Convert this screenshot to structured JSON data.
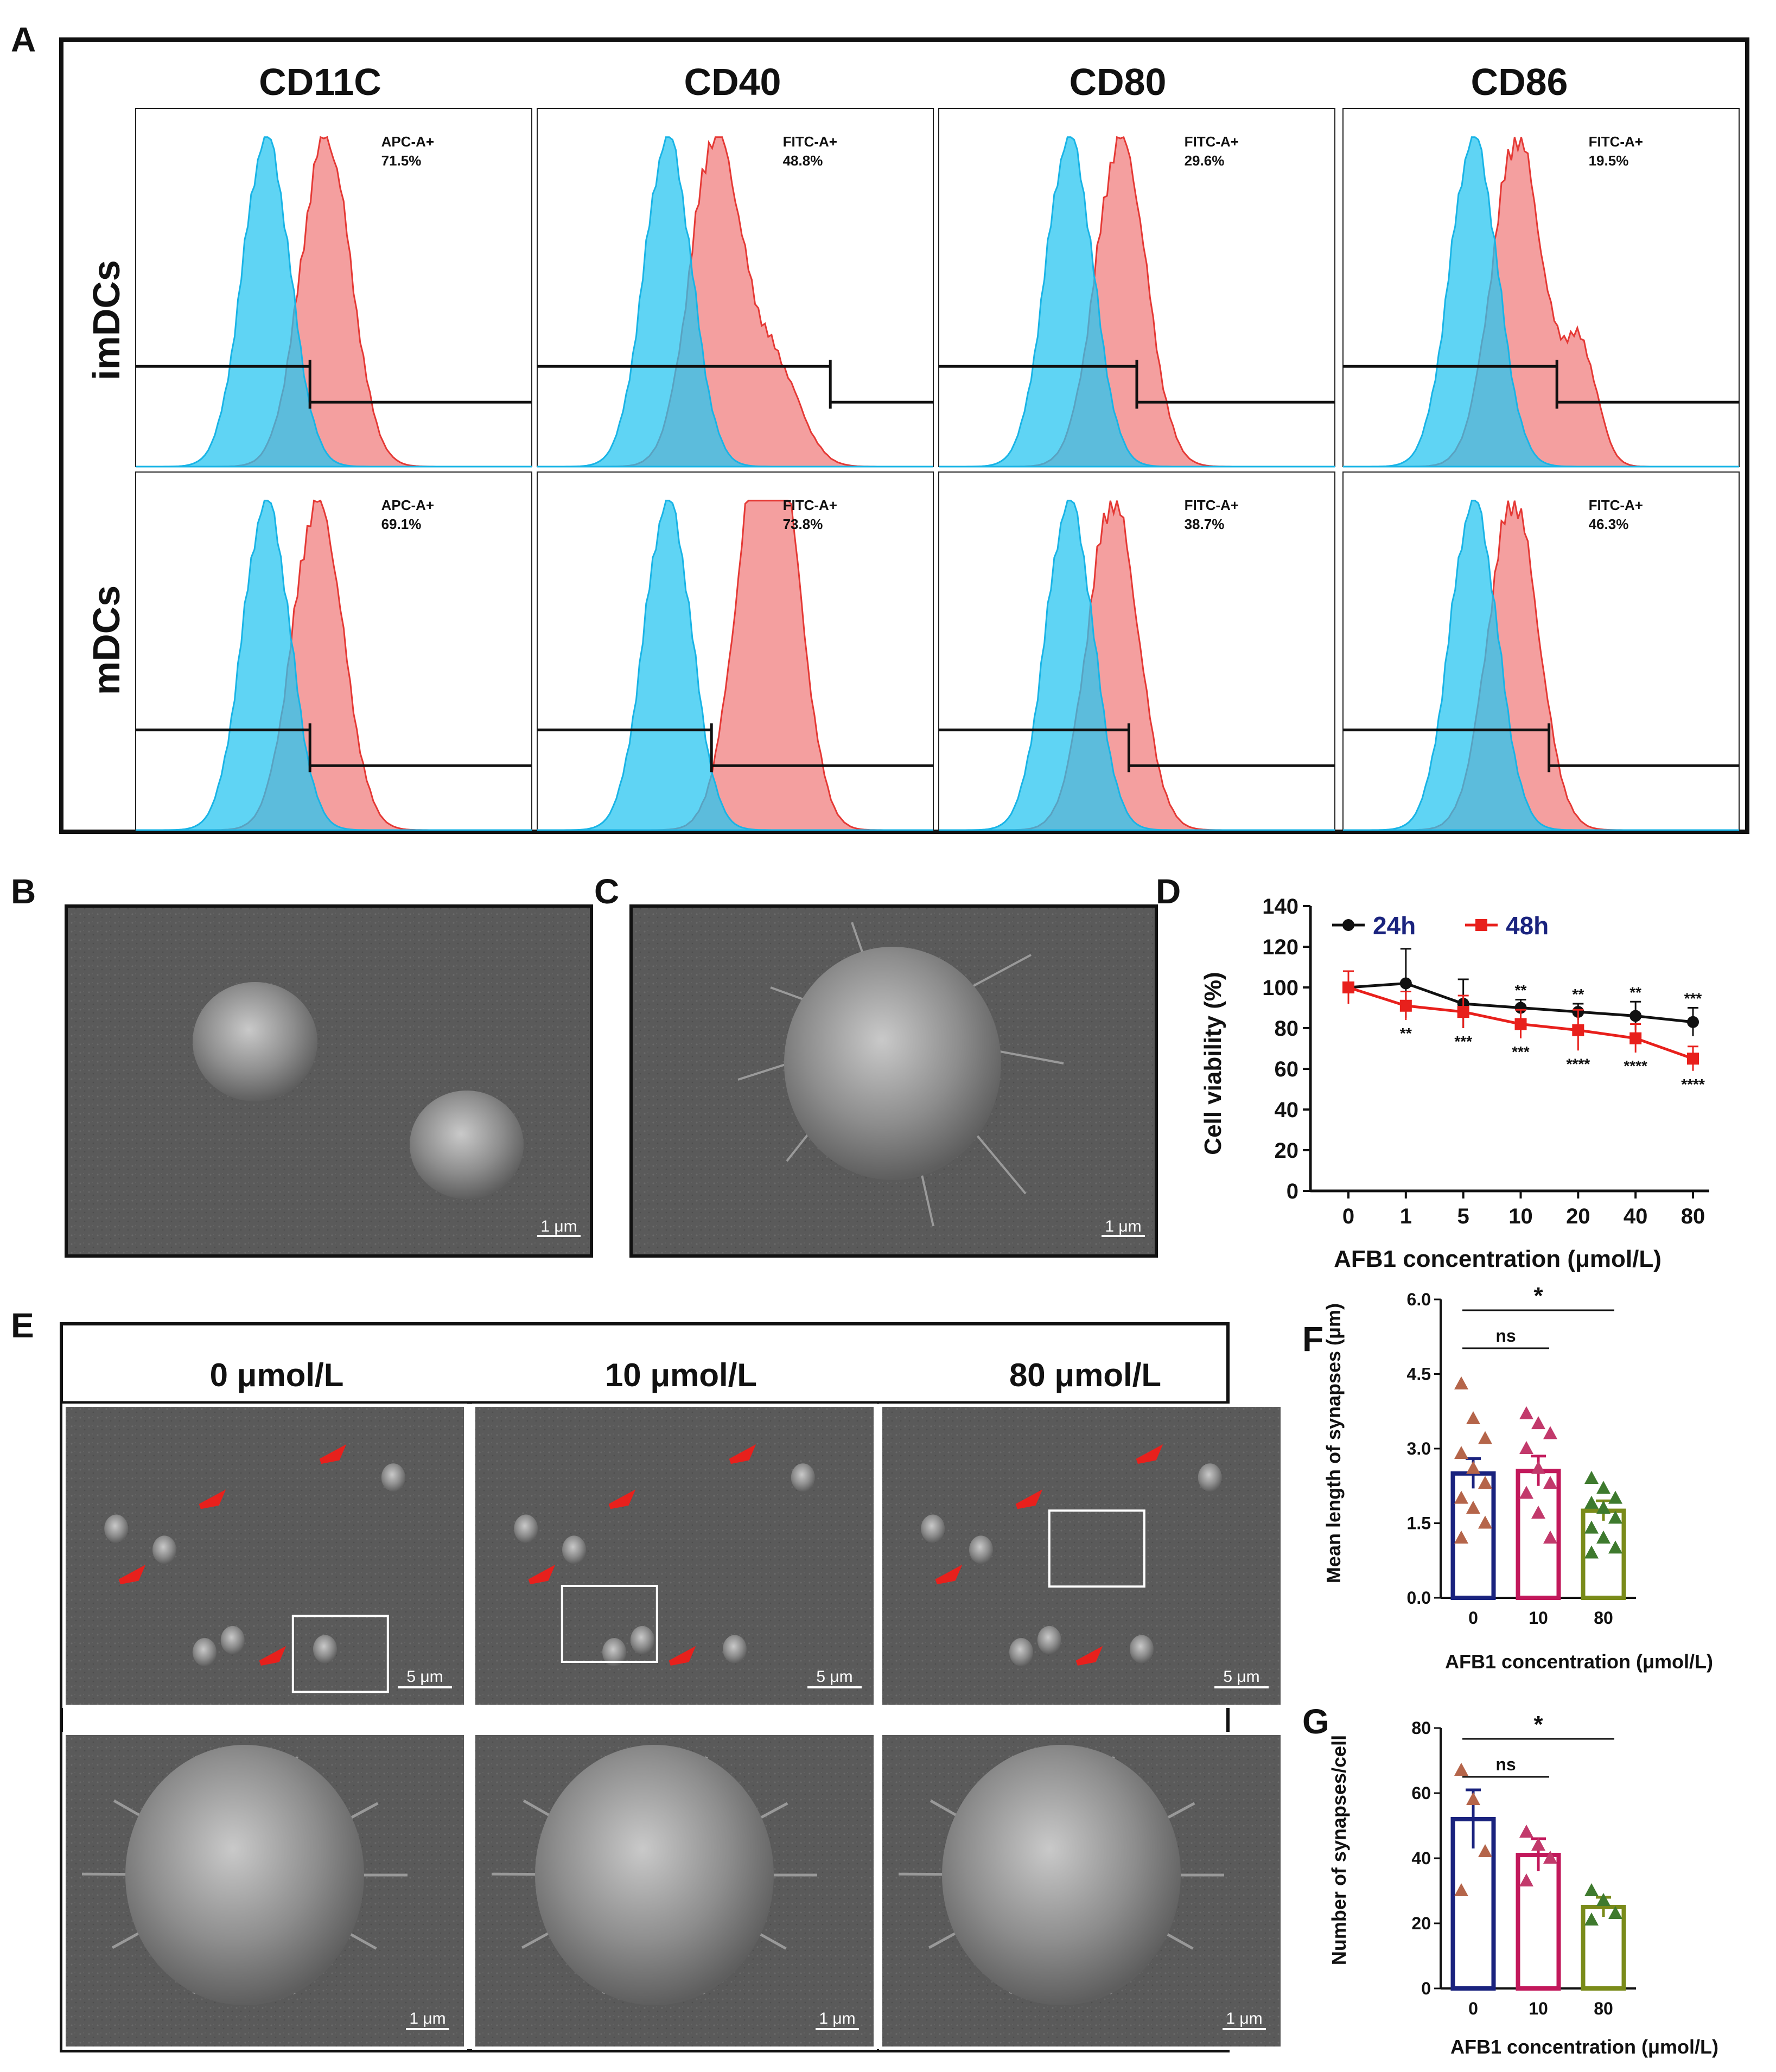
{
  "panel_labels": {
    "a": "A",
    "b": "B",
    "c": "C",
    "d": "D",
    "e": "E",
    "f": "F",
    "g": "G"
  },
  "flow": {
    "markers": [
      "CD11C",
      "CD40",
      "CD80",
      "CD86"
    ],
    "rows": [
      "imDCs",
      "mDCs"
    ],
    "gates": [
      [
        "APC-A+",
        "FITC-A+",
        "FITC-A+",
        "FITC-A+"
      ],
      [
        "APC-A+",
        "FITC-A+",
        "FITC-A+",
        "FITC-A+"
      ]
    ],
    "percents": [
      [
        "71.5%",
        "48.8%",
        "29.6%",
        "19.5%"
      ],
      [
        "69.1%",
        "73.8%",
        "38.7%",
        "46.3%"
      ]
    ],
    "colors": {
      "control": "#29c5f0",
      "stained": "#f07f7f"
    }
  },
  "sem": {
    "scale_1um": "1 μm",
    "scale_5um": "5 μm",
    "concentrations": [
      "0 μmol/L",
      "10 μmol/L",
      "80 μmol/L"
    ]
  },
  "chart_data": [
    {
      "id": "D",
      "type": "line",
      "title": "",
      "ylabel": "Cell viability (%)",
      "xlabel": "AFB1 concentration (μmol/L)",
      "categories": [
        "0",
        "1",
        "5",
        "10",
        "20",
        "40",
        "80"
      ],
      "ylim": [
        0,
        140
      ],
      "yticks": [
        "0",
        "20",
        "40",
        "60",
        "80",
        "100",
        "120",
        "140"
      ],
      "series": [
        {
          "name": "24h",
          "color": "#111111",
          "values": [
            100,
            102,
            92,
            90,
            88,
            86,
            83
          ],
          "errors": [
            8,
            17,
            12,
            4,
            4,
            7,
            7
          ],
          "sig": [
            "",
            "",
            "",
            "**",
            "**",
            "**",
            "***"
          ]
        },
        {
          "name": "48h",
          "color": "#e8201c",
          "values": [
            100,
            91,
            88,
            82,
            79,
            75,
            65
          ],
          "errors": [
            8,
            7,
            8,
            7,
            10,
            7,
            6
          ],
          "sig": [
            "",
            "**",
            "***",
            "***",
            "****",
            "****",
            "****"
          ]
        }
      ]
    },
    {
      "id": "F",
      "type": "bar",
      "ylabel": "Mean length of synapses (μm)",
      "xlabel": "AFB1 concentration (μmol/L)",
      "categories": [
        "0",
        "10",
        "80"
      ],
      "ylim": [
        0,
        6
      ],
      "yticks": [
        "0.0",
        "1.5",
        "3.0",
        "4.5",
        "6.0"
      ],
      "values": [
        2.5,
        2.55,
        1.75
      ],
      "errors": [
        0.3,
        0.3,
        0.2
      ],
      "colors": [
        "#1a237e",
        "#c2185b",
        "#7a8b1a"
      ],
      "points": [
        [
          4.3,
          3.6,
          3.2,
          2.9,
          2.6,
          2.3,
          2.0,
          1.8,
          1.5,
          1.2
        ],
        [
          3.7,
          3.5,
          3.3,
          3.0,
          2.6,
          2.3,
          2.1,
          1.7,
          1.2
        ],
        [
          2.4,
          2.2,
          2.0,
          1.9,
          1.8,
          1.6,
          1.4,
          1.2,
          1.0,
          0.9
        ]
      ],
      "point_colors": [
        "#b5654a",
        "#c2396b",
        "#3e7a2e"
      ],
      "annotations": [
        {
          "text": "ns",
          "from": 0,
          "to": 1
        },
        {
          "text": "*",
          "from": 0,
          "to": 2
        }
      ]
    },
    {
      "id": "G",
      "type": "bar",
      "ylabel": "Number of synapses/cell",
      "xlabel": "AFB1 concentration (μmol/L)",
      "categories": [
        "0",
        "10",
        "80"
      ],
      "ylim": [
        0,
        80
      ],
      "yticks": [
        "0",
        "20",
        "40",
        "60",
        "80"
      ],
      "values": [
        52,
        41,
        25
      ],
      "errors": [
        9,
        5,
        3
      ],
      "colors": [
        "#1a237e",
        "#c2185b",
        "#7a8b1a"
      ],
      "points": [
        [
          67,
          58,
          42,
          30
        ],
        [
          48,
          44,
          40,
          33
        ],
        [
          30,
          27,
          23,
          21
        ]
      ],
      "point_colors": [
        "#b5654a",
        "#c2396b",
        "#3e7a2e"
      ],
      "annotations": [
        {
          "text": "ns",
          "from": 0,
          "to": 1
        },
        {
          "text": "*",
          "from": 0,
          "to": 2
        }
      ]
    }
  ]
}
